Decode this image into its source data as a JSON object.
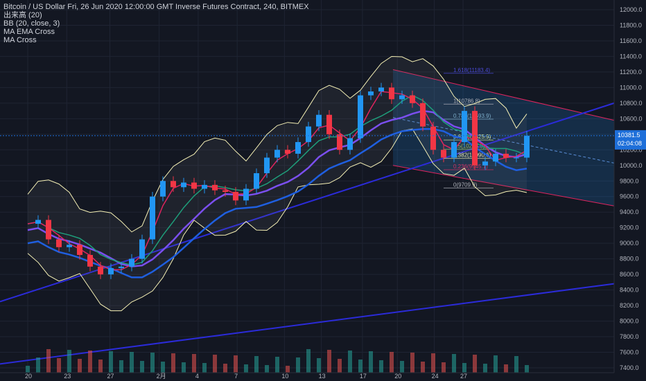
{
  "legend": {
    "title": "Bitcoin / US Dollar Fri, 26 Jun 2020 12:00:00 GMT Inverse Futures Contract, 240, BITMEX",
    "volume": "出来高 (20)",
    "bb": "BB (20, close, 3)",
    "ema_cross": "MA EMA Cross",
    "ma_cross": "MA Cross"
  },
  "colors": {
    "background": "#131722",
    "grid": "#1f2433",
    "up": "#26a69a",
    "down": "#ef5350",
    "candle_up": "#2196f3",
    "candle_down": "#f23645",
    "bb_band": "#f5f0b5",
    "ema_green": "#1e9e7a",
    "ma_purple": "#7b4ff0",
    "ma_blue": "#1f5fe0",
    "trend": "#2b2bd9",
    "channel": "#e0245e",
    "price_label": "#1e6fd9"
  },
  "price_label": {
    "price": "10381.5",
    "countdown": "02:04:08"
  },
  "chart_data": {
    "type": "candlestick",
    "title": "Bitcoin / US Dollar Fri, 26 Jun 2020 12:00:00 GMT Inverse Futures Contract, 240, BITMEX",
    "ylim": [
      7400,
      12100
    ],
    "y_ticks": [
      12000,
      11800,
      11600,
      11400,
      11200,
      11000,
      10800,
      10600,
      10400,
      10200,
      10000,
      9800,
      9600,
      9400,
      9200,
      9000,
      8800,
      8600,
      8400,
      8200,
      8000,
      7800,
      7600,
      7400
    ],
    "y_tick_labels": [
      "12000.0",
      "11800.0",
      "11600.0",
      "11400.0",
      "11200.0",
      "11000.0",
      "10800.0",
      "10600.0",
      "10400.0",
      "10200.0",
      "10000.0",
      "9800.0",
      "9600.0",
      "9400.0",
      "9200.0",
      "9000.0",
      "8800.0",
      "8600.0",
      "8400.0",
      "8200.0",
      "8000.0",
      "7800.0",
      "7600.0",
      "7400.0"
    ],
    "x_ticks": [
      "20",
      "23",
      "27",
      "2月",
      "4",
      "7",
      "10",
      "13",
      "17",
      "20",
      "24",
      "27"
    ],
    "x_tick_pos": [
      0.0,
      0.095,
      0.2,
      0.32,
      0.415,
      0.51,
      0.625,
      0.715,
      0.815,
      0.9,
      0.99,
      1.06
    ],
    "price_series": [
      [
        0.0,
        9250
      ],
      [
        0.02,
        9300
      ],
      [
        0.04,
        9050
      ],
      [
        0.06,
        8950
      ],
      [
        0.08,
        8980
      ],
      [
        0.1,
        8850
      ],
      [
        0.12,
        8700
      ],
      [
        0.14,
        8600
      ],
      [
        0.16,
        8680
      ],
      [
        0.18,
        8700
      ],
      [
        0.2,
        8800
      ],
      [
        0.22,
        9050
      ],
      [
        0.24,
        9600
      ],
      [
        0.26,
        9800
      ],
      [
        0.28,
        9720
      ],
      [
        0.3,
        9780
      ],
      [
        0.32,
        9700
      ],
      [
        0.34,
        9750
      ],
      [
        0.36,
        9680
      ],
      [
        0.38,
        9660
      ],
      [
        0.4,
        9550
      ],
      [
        0.42,
        9700
      ],
      [
        0.44,
        9900
      ],
      [
        0.46,
        10100
      ],
      [
        0.48,
        10200
      ],
      [
        0.5,
        10150
      ],
      [
        0.52,
        10300
      ],
      [
        0.54,
        10500
      ],
      [
        0.56,
        10650
      ],
      [
        0.58,
        10400
      ],
      [
        0.6,
        10200
      ],
      [
        0.62,
        10350
      ],
      [
        0.64,
        10900
      ],
      [
        0.66,
        10950
      ],
      [
        0.68,
        11000
      ],
      [
        0.7,
        10850
      ],
      [
        0.72,
        10900
      ],
      [
        0.74,
        10800
      ],
      [
        0.76,
        10500
      ],
      [
        0.78,
        10200
      ],
      [
        0.8,
        10100
      ],
      [
        0.82,
        10300
      ],
      [
        0.84,
        10700
      ],
      [
        0.86,
        10000
      ],
      [
        0.88,
        10050
      ],
      [
        0.9,
        10150
      ],
      [
        0.92,
        10100
      ],
      [
        0.94,
        10100
      ],
      [
        0.96,
        10381.5
      ]
    ],
    "fib_levels": [
      {
        "label": "1.618(11183.4)",
        "value": 11183.4,
        "color": "#4b4bd9"
      },
      {
        "label": "1(10786.8)",
        "value": 10786.8,
        "color": "#b2b5be"
      },
      {
        "label": "0.786(10593.9)",
        "value": 10593.9,
        "color": "#7fb6d6"
      },
      {
        "label": "0.618(10325.9)",
        "value": 10325.9,
        "color": "#d7f0a0"
      },
      {
        "label": "0.5(10208.3)",
        "value": 10208.3,
        "color": "#9ccc65"
      },
      {
        "label": "0.382(10090.6)",
        "value": 10090.6,
        "color": "#f5f0b5"
      },
      {
        "label": "0.236(9945.1)",
        "value": 9945.1,
        "color": "#e0245e"
      },
      {
        "label": "0(9709.9)",
        "value": 9709.9,
        "color": "#b2b5be"
      }
    ]
  }
}
